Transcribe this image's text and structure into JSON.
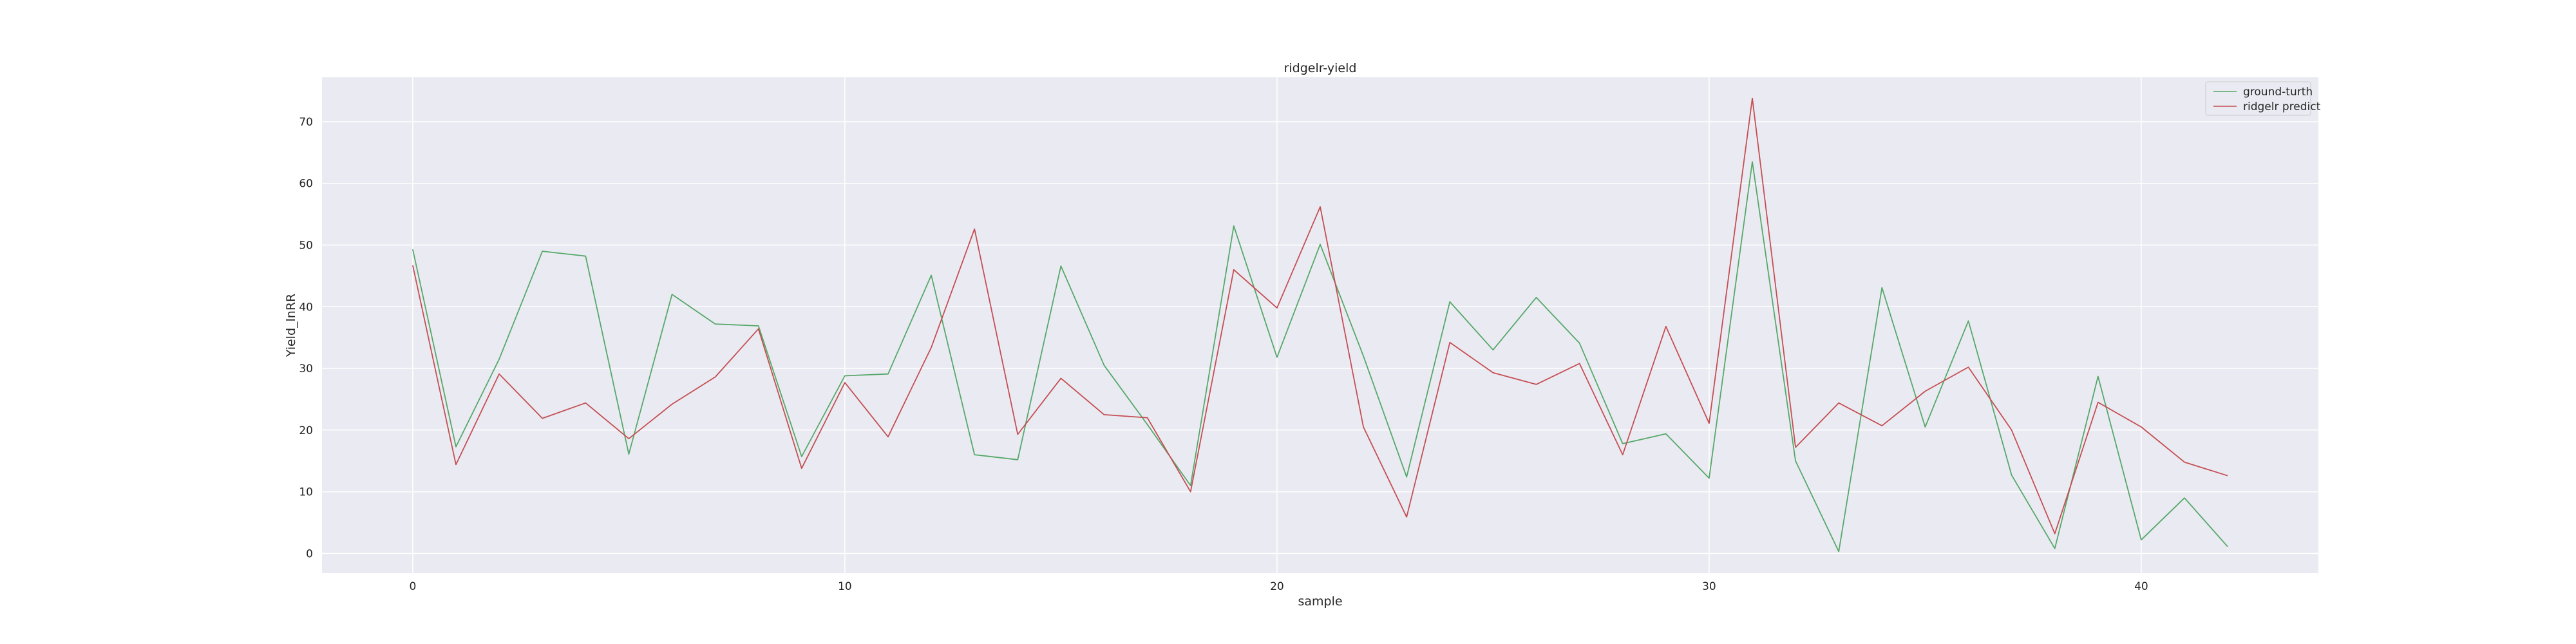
{
  "chart_data": {
    "type": "line",
    "title": "ridgelr-yield",
    "xlabel": "sample",
    "ylabel": "Yield_lnRR",
    "xlim": [
      -2.1,
      44.1
    ],
    "ylim": [
      -3.2,
      77.2
    ],
    "xticks": [
      0,
      10,
      20,
      30,
      40
    ],
    "yticks": [
      0,
      10,
      20,
      30,
      40,
      50,
      60,
      70
    ],
    "grid": true,
    "legend_position": "top-right",
    "x": [
      0,
      1,
      2,
      3,
      4,
      5,
      6,
      7,
      8,
      9,
      10,
      11,
      12,
      13,
      14,
      15,
      16,
      17,
      18,
      19,
      20,
      21,
      22,
      23,
      24,
      25,
      26,
      27,
      28,
      29,
      30,
      31,
      32,
      33,
      34,
      35,
      36,
      37,
      38,
      39,
      40,
      41,
      42
    ],
    "series": [
      {
        "name": "ground-turth",
        "color": "#55a868",
        "values": [
          49.3,
          17.3,
          31.5,
          49.0,
          48.2,
          16.1,
          42.0,
          37.2,
          36.9,
          15.7,
          28.8,
          29.1,
          45.1,
          16.0,
          15.2,
          46.6,
          30.5,
          20.9,
          11.0,
          53.1,
          31.8,
          50.1,
          32.0,
          12.4,
          40.8,
          33.0,
          41.5,
          34.1,
          17.8,
          19.4,
          12.2,
          63.5,
          15.0,
          0.3,
          43.1,
          20.5,
          37.7,
          12.7,
          0.8,
          28.7,
          2.2,
          9.0,
          1.1
        ]
      },
      {
        "name": "ridgelr predict",
        "color": "#c44e52",
        "values": [
          46.7,
          14.4,
          29.1,
          21.9,
          24.4,
          18.6,
          24.2,
          28.6,
          36.4,
          13.8,
          27.7,
          18.9,
          33.4,
          52.6,
          19.3,
          28.4,
          22.5,
          22.0,
          10.0,
          46.0,
          39.8,
          56.2,
          20.5,
          5.9,
          34.2,
          29.3,
          27.4,
          30.8,
          16.0,
          36.8,
          21.1,
          73.8,
          17.2,
          24.4,
          20.7,
          26.3,
          30.2,
          20.0,
          3.2,
          24.5,
          20.5,
          14.8,
          12.6
        ]
      }
    ]
  }
}
